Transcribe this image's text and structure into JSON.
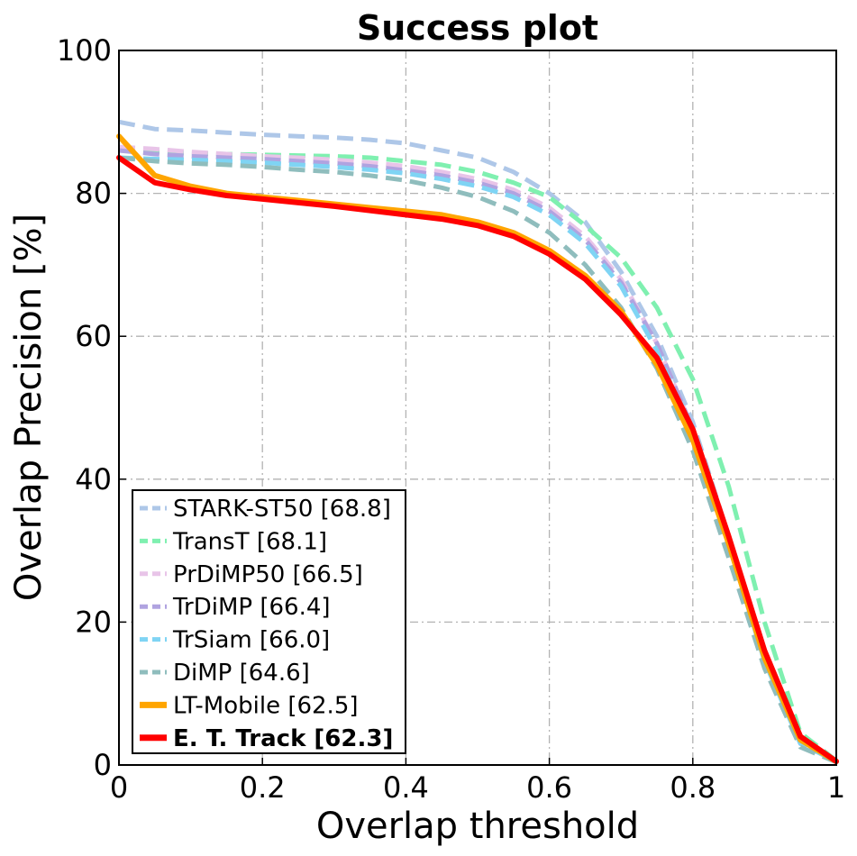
{
  "chart_data": {
    "type": "line",
    "title": "Success plot",
    "xlabel": "Overlap threshold",
    "ylabel": "Overlap Precision [%]",
    "xlim": [
      0,
      1
    ],
    "ylim": [
      0,
      100
    ],
    "grid": true,
    "legend_position": "bottom-left",
    "x_ticks": [
      0,
      0.2,
      0.4,
      0.6,
      0.8,
      1
    ],
    "x_tick_labels": [
      "0",
      "0.2",
      "0.4",
      "0.6",
      "0.8",
      "1"
    ],
    "y_ticks": [
      0,
      20,
      40,
      60,
      80,
      100
    ],
    "y_tick_labels": [
      "0",
      "20",
      "40",
      "60",
      "80",
      "100"
    ],
    "x": [
      0,
      0.05,
      0.1,
      0.15,
      0.2,
      0.25,
      0.3,
      0.35,
      0.4,
      0.45,
      0.5,
      0.55,
      0.6,
      0.65,
      0.7,
      0.75,
      0.8,
      0.85,
      0.9,
      0.95,
      1.0
    ],
    "series": [
      {
        "name": "STARK-ST50 [68.8]",
        "color": "#aec7e8",
        "style": "dashed",
        "bold": false,
        "values": [
          90.0,
          89.0,
          88.8,
          88.5,
          88.2,
          88.0,
          87.8,
          87.5,
          87.0,
          86.0,
          85.0,
          83.0,
          80.0,
          76.0,
          69.0,
          60.0,
          48.0,
          32.0,
          15.0,
          3.0,
          0.5
        ]
      },
      {
        "name": "TransT [68.1]",
        "color": "#7ff0b0",
        "style": "dashed",
        "bold": false,
        "values": [
          86.0,
          85.8,
          85.6,
          85.5,
          85.4,
          85.3,
          85.2,
          85.0,
          84.5,
          84.0,
          83.0,
          81.5,
          79.5,
          75.5,
          71.0,
          64.0,
          54.0,
          39.0,
          20.0,
          4.5,
          0.6
        ]
      },
      {
        "name": "PrDiMP50 [66.5]",
        "color": "#e8c4e8",
        "style": "dashed",
        "bold": false,
        "values": [
          86.5,
          86.2,
          85.8,
          85.5,
          85.2,
          85.0,
          84.7,
          84.3,
          83.8,
          83.0,
          82.0,
          80.5,
          78.0,
          74.0,
          68.0,
          59.0,
          47.0,
          32.0,
          15.0,
          3.5,
          0.5
        ]
      },
      {
        "name": "TrDiMP [66.4]",
        "color": "#b0a3e0",
        "style": "dashed",
        "bold": false,
        "values": [
          86.0,
          85.5,
          85.2,
          85.0,
          84.8,
          84.5,
          84.2,
          83.8,
          83.2,
          82.5,
          81.5,
          80.0,
          77.5,
          73.5,
          67.5,
          59.0,
          47.0,
          32.0,
          15.0,
          3.0,
          0.5
        ]
      },
      {
        "name": "TrSiam [66.0]",
        "color": "#7fd4f4",
        "style": "dashed",
        "bold": false,
        "values": [
          85.0,
          84.8,
          84.7,
          84.5,
          84.3,
          84.0,
          83.7,
          83.3,
          82.8,
          82.0,
          81.0,
          79.5,
          77.0,
          73.0,
          67.0,
          58.0,
          46.0,
          31.0,
          14.5,
          3.0,
          0.5
        ]
      },
      {
        "name": "DiMP [64.6]",
        "color": "#8fbdbd",
        "style": "dashed",
        "bold": false,
        "values": [
          85.0,
          84.5,
          84.2,
          84.0,
          83.7,
          83.3,
          83.0,
          82.5,
          81.8,
          80.8,
          79.5,
          77.5,
          74.5,
          70.0,
          64.0,
          55.5,
          44.0,
          29.0,
          13.5,
          2.5,
          0.4
        ]
      },
      {
        "name": "LT-Mobile [62.5]",
        "color": "#ffa500",
        "style": "solid",
        "bold": false,
        "values": [
          88.0,
          82.5,
          81.0,
          80.0,
          79.5,
          79.0,
          78.5,
          78.0,
          77.5,
          77.0,
          76.0,
          74.5,
          72.0,
          68.5,
          63.5,
          56.0,
          45.5,
          31.0,
          15.0,
          3.5,
          0.5
        ]
      },
      {
        "name": "E. T. Track [62.3]",
        "color": "#ff0000",
        "style": "solid",
        "bold": true,
        "values": [
          85.0,
          81.5,
          80.5,
          79.7,
          79.2,
          78.7,
          78.2,
          77.6,
          77.0,
          76.4,
          75.5,
          74.0,
          71.5,
          68.0,
          63.0,
          57.0,
          47.0,
          32.0,
          16.0,
          4.0,
          0.5
        ]
      }
    ]
  }
}
